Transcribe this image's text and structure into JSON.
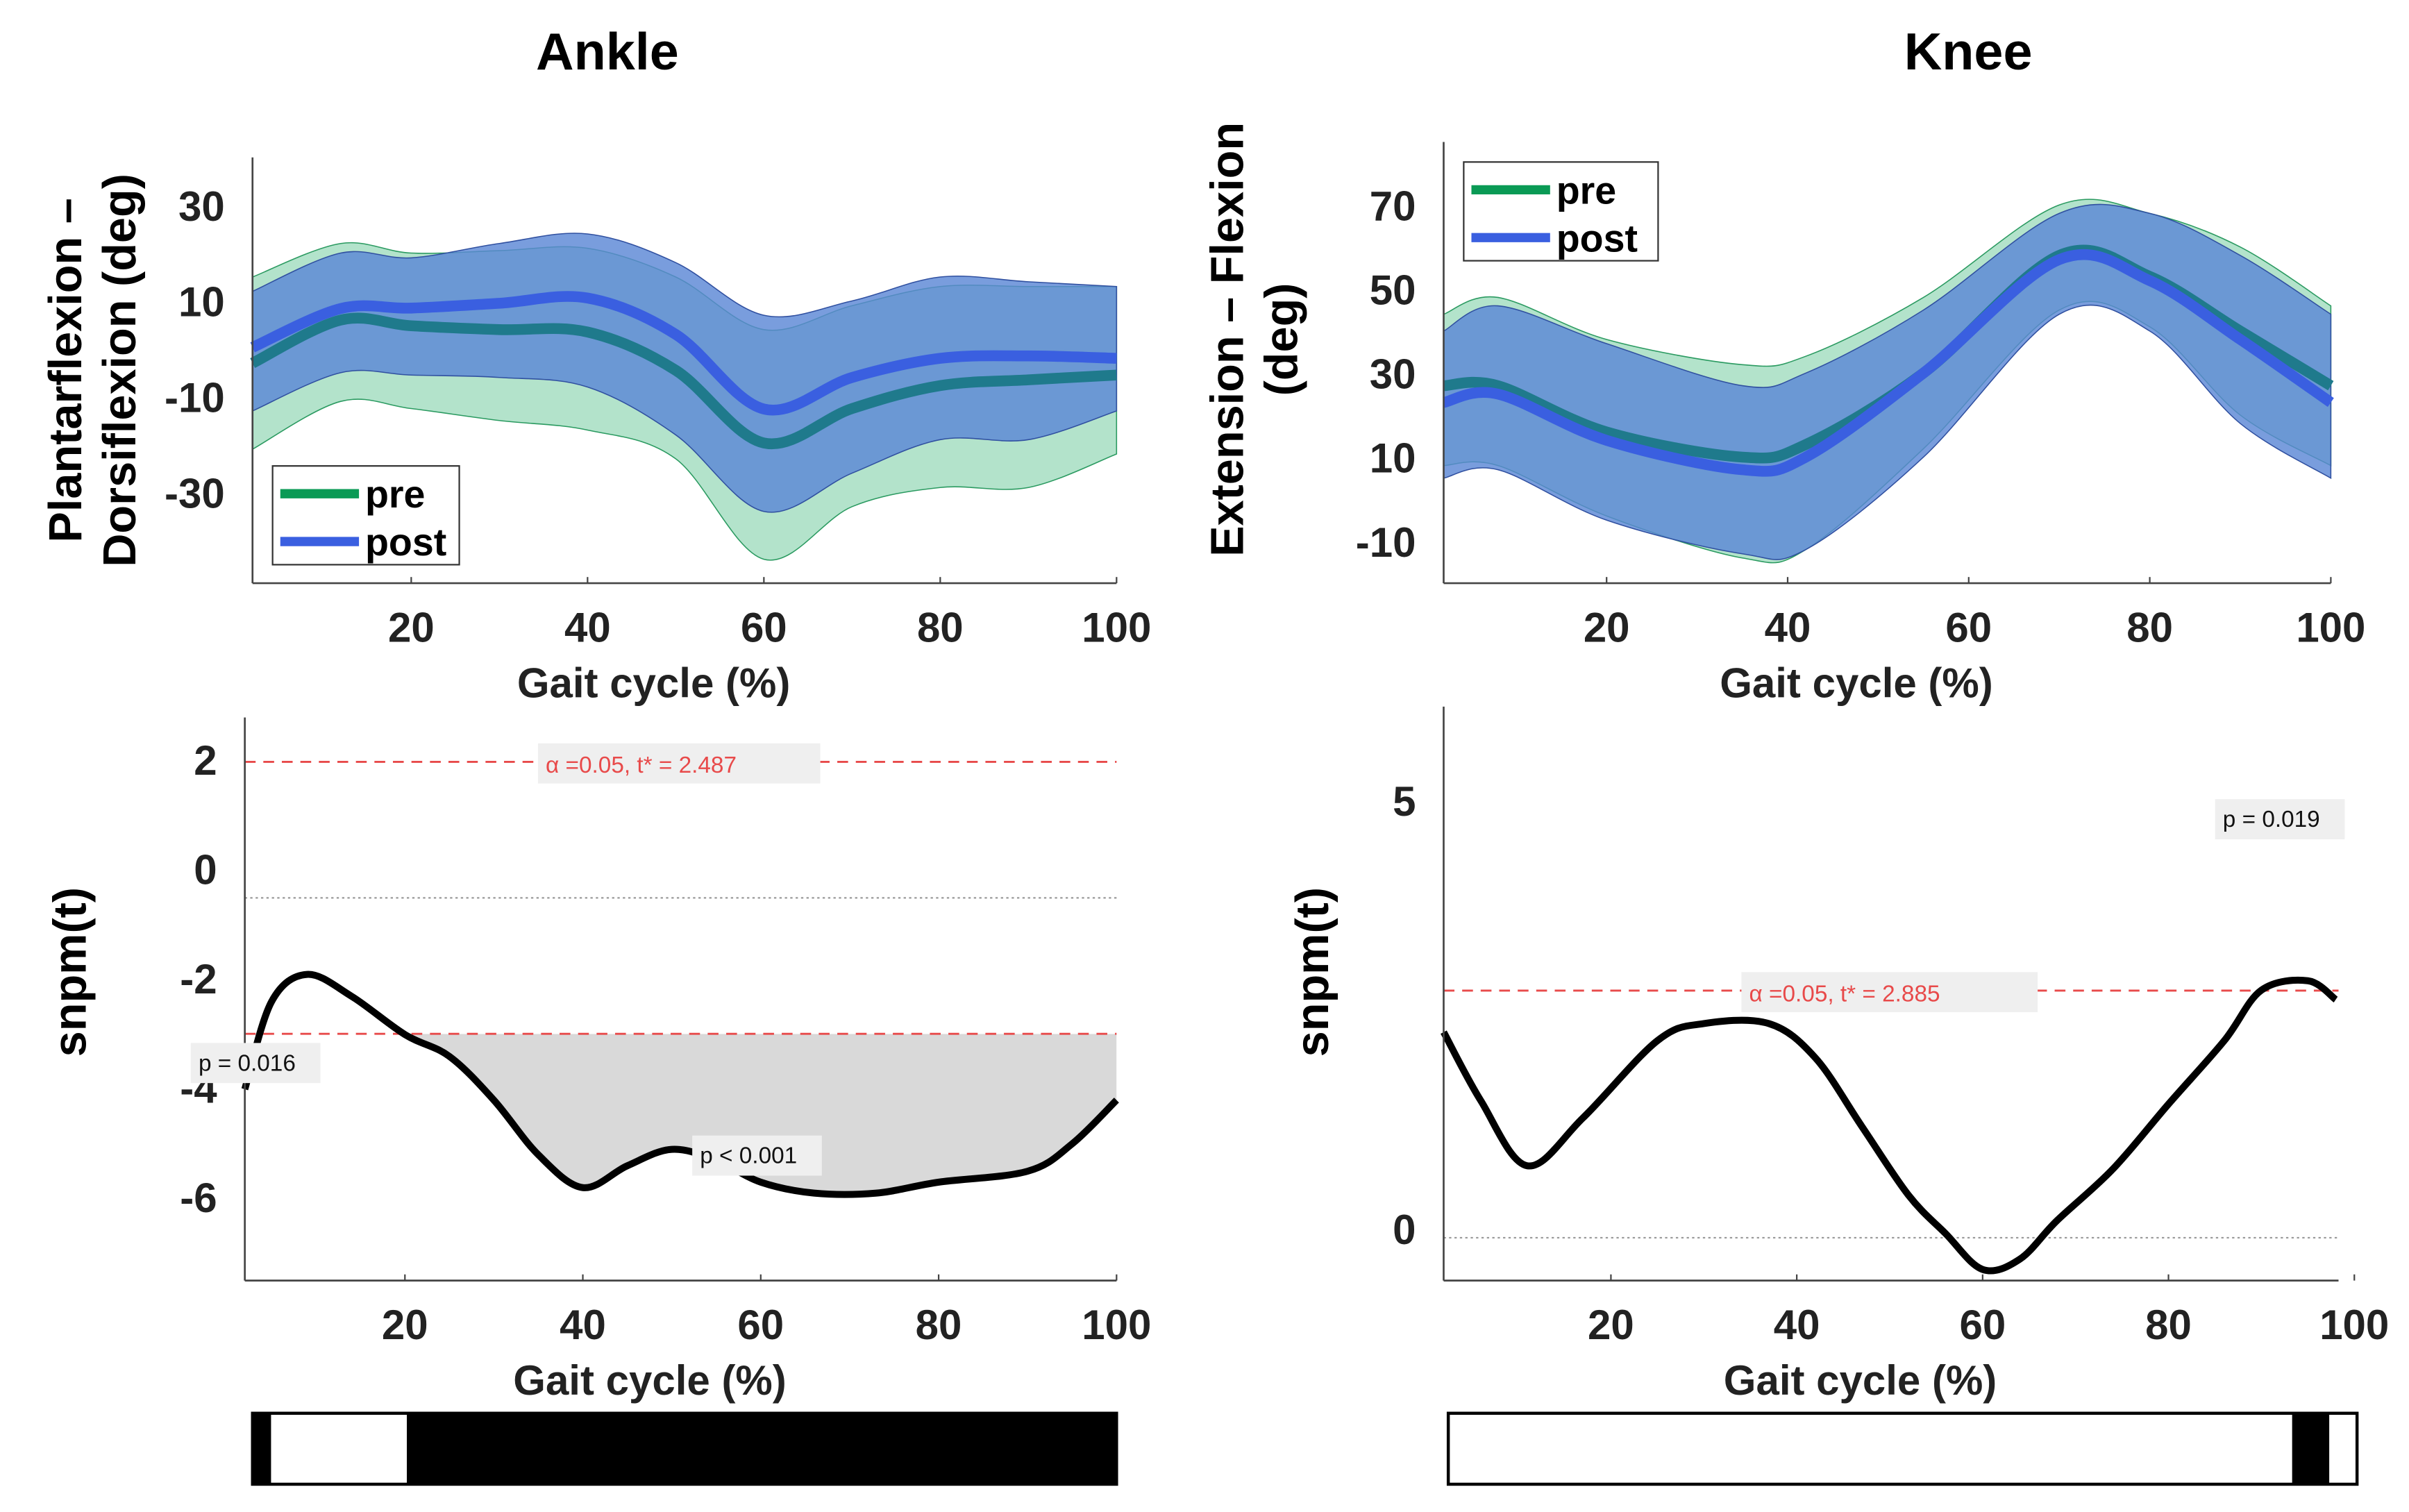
{
  "colors": {
    "pre_band": "#b3e3cb",
    "post_band": "#5b88d6",
    "pre_line": "#1f7a8c",
    "post_line": "#3a5fe0",
    "threshold": "#e84a4a",
    "legend_pre": "#0a9a55"
  },
  "chart_data": [
    {
      "id": "ankle_kinematics",
      "type": "area",
      "title": "Ankle",
      "xlabel": "Gait cycle (%)",
      "ylabel": [
        "Plantarflexion –",
        "Dorsiflexion (deg)"
      ],
      "xlim": [
        2,
        100
      ],
      "ylim": [
        -49,
        40
      ],
      "xticks": [
        20,
        40,
        60,
        80,
        100
      ],
      "yticks": [
        30,
        10,
        -10,
        -30
      ],
      "legend": {
        "placement": "bottom-left",
        "entries": [
          "pre",
          "post"
        ]
      },
      "series": [
        {
          "name": "pre",
          "x": [
            2,
            12,
            20,
            30,
            40,
            50,
            60,
            70,
            80,
            90,
            100
          ],
          "mean": [
            -3,
            6,
            4.8,
            4,
            3.5,
            -4.5,
            -19.7,
            -12.5,
            -7.7,
            -6.5,
            -5.5
          ],
          "upper": [
            15,
            22,
            20,
            20.5,
            21,
            15,
            4,
            9,
            13,
            13,
            13
          ],
          "lower": [
            -21,
            -11,
            -12.5,
            -15,
            -17,
            -23,
            -44,
            -33,
            -29,
            -29,
            -22
          ]
        },
        {
          "name": "post",
          "x": [
            2,
            12,
            20,
            30,
            40,
            50,
            60,
            70,
            80,
            90,
            100
          ],
          "mean": [
            0.3,
            8.4,
            8.5,
            9.5,
            10.6,
            3,
            -12.6,
            -6,
            -2,
            -1.5,
            -2
          ],
          "upper": [
            12,
            20,
            19,
            22,
            24,
            18,
            7,
            10,
            15,
            14,
            13
          ],
          "lower": [
            -13,
            -5,
            -5.5,
            -6,
            -8,
            -18,
            -34,
            -26,
            -19,
            -19,
            -13
          ]
        }
      ]
    },
    {
      "id": "knee_kinematics",
      "type": "area",
      "title": "Knee",
      "xlabel": "Gait cycle (%)",
      "ylabel": [
        "Extension – Flexion",
        "(deg)"
      ],
      "xlim": [
        2,
        100
      ],
      "ylim": [
        -20,
        85
      ],
      "xticks": [
        20,
        40,
        60,
        80,
        100
      ],
      "yticks": [
        70,
        50,
        30,
        10,
        -10
      ],
      "legend": {
        "placement": "top-left",
        "entries": [
          "pre",
          "post"
        ]
      },
      "series": [
        {
          "name": "pre",
          "x": [
            2,
            8,
            20,
            35,
            42,
            55,
            70,
            80,
            90,
            100
          ],
          "mean": [
            27,
            27,
            16,
            10,
            13,
            30,
            58,
            53,
            40,
            27
          ],
          "upper": [
            44,
            48,
            38,
            32,
            34,
            48,
            70,
            68,
            60,
            46
          ],
          "lower": [
            8,
            8,
            -4,
            -14,
            -12,
            12,
            45,
            41,
            20,
            8
          ]
        },
        {
          "name": "post",
          "x": [
            2,
            8,
            20,
            35,
            42,
            55,
            70,
            80,
            90,
            100
          ],
          "mean": [
            23,
            25,
            14,
            7,
            10,
            30,
            57,
            52,
            38,
            23
          ],
          "upper": [
            40,
            46,
            37,
            27,
            30,
            45,
            68,
            68,
            58,
            44
          ],
          "lower": [
            5,
            7,
            -5,
            -13,
            -12,
            10,
            44,
            40,
            18,
            5
          ]
        }
      ]
    },
    {
      "id": "ankle_spm",
      "type": "line",
      "xlabel": "Gait cycle (%)",
      "ylabel": "snpm(t)",
      "xlim": [
        2,
        100
      ],
      "ylim": [
        -7,
        3.3
      ],
      "xticks": [
        20,
        40,
        60,
        80,
        100
      ],
      "yticks": [
        2,
        0,
        -2,
        -4,
        -6
      ],
      "threshold": 2.487,
      "annotations": {
        "threshold": "α  =0.05,     t* = 2.487",
        "clusters": [
          "p = 0.016",
          "p < 0.001"
        ]
      },
      "x": [
        2,
        5,
        9,
        14,
        20,
        25,
        30,
        35,
        40,
        45,
        50,
        55,
        60,
        66,
        73,
        80,
        90,
        95,
        100
      ],
      "t": [
        -3.5,
        -1.9,
        -1.4,
        -1.8,
        -2.5,
        -2.9,
        -3.7,
        -4.7,
        -5.3,
        -4.9,
        -4.6,
        -4.8,
        -5.2,
        -5.4,
        -5.4,
        -5.2,
        -5.0,
        -4.5,
        -3.7
      ],
      "significance_bar": {
        "significant_ranges": [
          [
            2,
            4
          ],
          [
            19.5,
            100
          ]
        ]
      }
    },
    {
      "id": "knee_spm",
      "type": "line",
      "xlabel": "Gait cycle (%)",
      "ylabel": "snpm(t)",
      "xlim": [
        2,
        98.3
      ],
      "ylim": [
        -0.5,
        6.2
      ],
      "xticks": [
        20,
        40,
        60,
        80,
        100
      ],
      "yticks": [
        5,
        0
      ],
      "threshold": 2.885,
      "annotations": {
        "threshold": "α  =0.05,     t* = 2.885",
        "clusters": [
          "p = 0.019"
        ]
      },
      "x": [
        2,
        6,
        11,
        17,
        25,
        30,
        37,
        42,
        47,
        52,
        56,
        60,
        64,
        68,
        74,
        80,
        86,
        90,
        95,
        98
      ],
      "t": [
        2.4,
        1.6,
        0.84,
        1.4,
        2.3,
        2.5,
        2.5,
        2.1,
        1.3,
        0.5,
        0.05,
        -0.37,
        -0.25,
        0.2,
        0.8,
        1.56,
        2.3,
        2.89,
        3.0,
        2.78
      ],
      "significance_bar": {
        "significant_ranges": [
          [
            93,
            97
          ]
        ]
      }
    }
  ]
}
